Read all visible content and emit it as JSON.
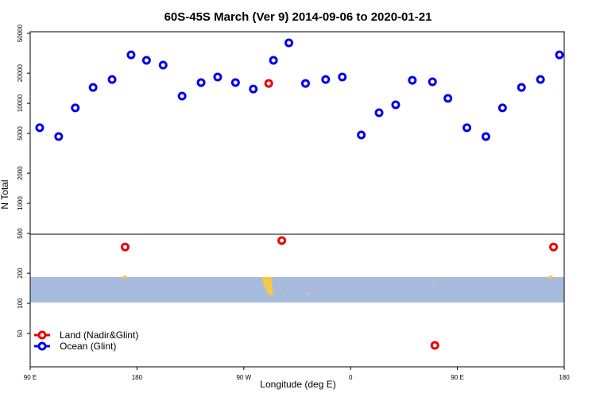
{
  "chart_data": {
    "type": "scatter",
    "title": "60S-45S March (Ver 9)   2014-09-06 to 2020-01-21",
    "x_label": "Longitude (deg E)",
    "y_label": "N Total",
    "yscale": "log",
    "legend": "lower left",
    "xlim": [
      90,
      540
    ],
    "xticks": [
      {
        "value": 90,
        "label": "90 E"
      },
      {
        "value": 180,
        "label": "180"
      },
      {
        "value": 270,
        "label": "90 W"
      },
      {
        "value": 360,
        "label": "0"
      },
      {
        "value": 450,
        "label": "90 E"
      },
      {
        "value": 540,
        "label": "180"
      }
    ],
    "ylim": [
      23.2,
      51900
    ],
    "yticks": [
      50,
      100,
      200,
      500,
      1000,
      2000,
      5000,
      10000,
      20000,
      50000
    ],
    "series": [
      {
        "name": "Land (Nadir&Glint)",
        "color": "#ee0000",
        "x": [
          170,
          291,
          302,
          431,
          531
        ],
        "values": [
          366,
          15800,
          424,
          38,
          366
        ]
      },
      {
        "name": "Ocean (Glint)",
        "color": "#0000ee",
        "x": [
          98,
          114,
          128,
          143,
          159,
          175,
          188,
          202,
          218,
          234,
          248,
          263,
          278,
          295,
          308,
          322,
          339,
          353,
          369,
          384,
          398,
          412,
          429,
          442,
          458,
          474,
          488,
          504,
          520,
          536
        ],
        "values": [
          5700,
          4650,
          9000,
          14400,
          17300,
          30500,
          26900,
          24100,
          11800,
          16100,
          18300,
          16100,
          13900,
          26900,
          40200,
          15800,
          17300,
          18300,
          4820,
          8040,
          9660,
          17000,
          16400,
          11200,
          5700,
          4650,
          9000,
          14400,
          17300,
          30500
        ]
      }
    ]
  }
}
